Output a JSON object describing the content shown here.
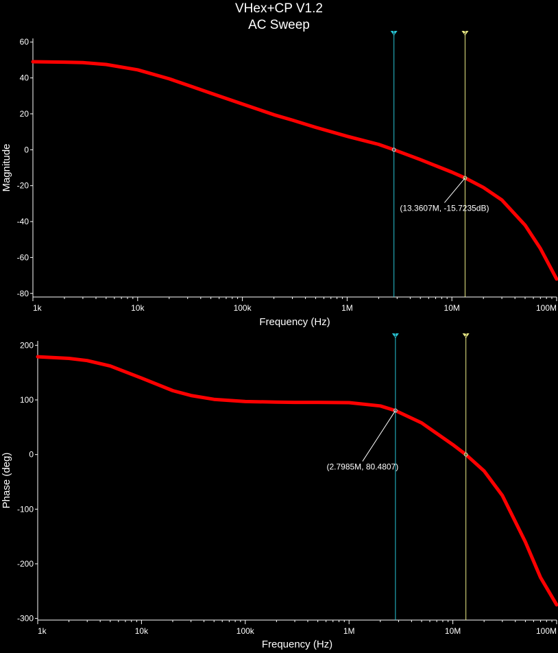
{
  "title": "VHex+CP V1.2",
  "subtitle": "AC Sweep",
  "colors": {
    "background": "#000000",
    "curve": "#ff0000",
    "axes": "#ffffff",
    "cursor1": "#29c6d6",
    "cursor2": "#eeee88"
  },
  "chart_data": [
    {
      "type": "line",
      "xlabel": "Frequency (Hz)",
      "ylabel": "Magnitude",
      "xscale": "log",
      "xlim": [
        1000,
        100000000
      ],
      "ylim": [
        -82,
        62
      ],
      "xticks": [
        {
          "v": 1000,
          "l": "1k"
        },
        {
          "v": 10000,
          "l": "10k"
        },
        {
          "v": 100000,
          "l": "100k"
        },
        {
          "v": 1000000,
          "l": "1M"
        },
        {
          "v": 10000000,
          "l": "10M"
        },
        {
          "v": 100000000,
          "l": "100M"
        }
      ],
      "yticks": [
        {
          "v": 60,
          "l": "60"
        },
        {
          "v": 40,
          "l": "40"
        },
        {
          "v": 20,
          "l": "20"
        },
        {
          "v": 0,
          "l": "0"
        },
        {
          "v": -20,
          "l": "-20"
        },
        {
          "v": -40,
          "l": "-40"
        },
        {
          "v": -60,
          "l": "-60"
        },
        {
          "v": -80,
          "l": "-80"
        }
      ],
      "series": [
        {
          "x": [
            1000,
            2000,
            3000,
            5000,
            10000,
            20000,
            30000,
            50000,
            100000,
            200000,
            300000,
            500000,
            1000000,
            2000000,
            2800000,
            5000000,
            10000000,
            13360000,
            20000000,
            30000000,
            50000000,
            70000000,
            100000000
          ],
          "y": [
            49,
            48.8,
            48.5,
            47.5,
            44.5,
            39.5,
            36,
            31.5,
            25.5,
            19.5,
            16.5,
            12.5,
            7.5,
            3,
            0,
            -5.5,
            -12.5,
            -15.7,
            -21,
            -28,
            -42,
            -55,
            -72
          ]
        }
      ],
      "cursors": [
        {
          "marker": "1",
          "x": 2798500,
          "y": 0
        },
        {
          "marker": "2",
          "x": 13360700,
          "y": -15.7235,
          "label": "(13.3607M, -15.7235dB)"
        }
      ]
    },
    {
      "type": "line",
      "xlabel": "Frequency (Hz)",
      "ylabel": "Phase (deg)",
      "xscale": "log",
      "xlim": [
        1000,
        100000000
      ],
      "ylim": [
        -303,
        208
      ],
      "xticks": [
        {
          "v": 1000,
          "l": "1k"
        },
        {
          "v": 10000,
          "l": "10k"
        },
        {
          "v": 100000,
          "l": "100k"
        },
        {
          "v": 1000000,
          "l": "1M"
        },
        {
          "v": 10000000,
          "l": "10M"
        },
        {
          "v": 100000000,
          "l": "100M"
        }
      ],
      "yticks": [
        {
          "v": 200,
          "l": "200"
        },
        {
          "v": 100,
          "l": "100"
        },
        {
          "v": 0,
          "l": "0"
        },
        {
          "v": -100,
          "l": "-100"
        },
        {
          "v": -200,
          "l": "-200"
        },
        {
          "v": -300,
          "l": "-300"
        }
      ],
      "series": [
        {
          "x": [
            1000,
            2000,
            3000,
            5000,
            10000,
            20000,
            30000,
            50000,
            100000,
            200000,
            300000,
            500000,
            1000000,
            2000000,
            2800000,
            5000000,
            10000000,
            13360000,
            20000000,
            30000000,
            50000000,
            70000000,
            100000000
          ],
          "y": [
            179,
            176,
            172,
            162,
            140,
            117,
            108,
            101,
            97,
            96,
            95.5,
            95.5,
            95,
            89,
            80.5,
            58,
            18,
            0,
            -30,
            -75,
            -160,
            -225,
            -275
          ]
        }
      ],
      "cursors": [
        {
          "marker": "1",
          "x": 2798500,
          "y": 80.4807,
          "label": "(2.7985M, 80.4807)"
        },
        {
          "marker": "2",
          "x": 13360700,
          "y": 0
        }
      ]
    }
  ]
}
